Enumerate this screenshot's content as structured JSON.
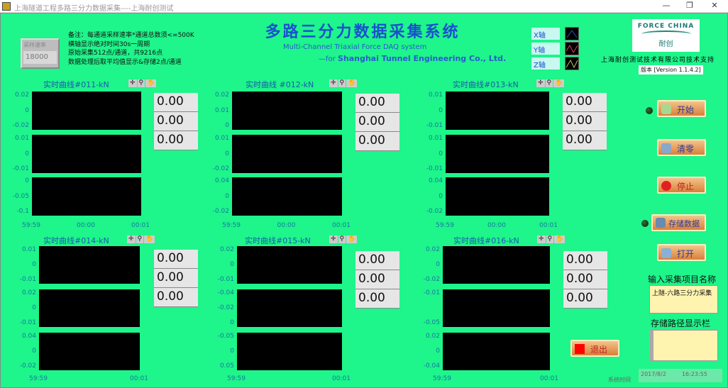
{
  "window": {
    "title": "上海隧道工程多路三分力数据采集----上海耐创测试",
    "minimize": "—",
    "restore": "❐",
    "close": "✕"
  },
  "sample_rate": {
    "label": "采样速率",
    "value": "18000"
  },
  "notes": [
    "备注：每通道采样速率*通道总数须<=500K",
    "横轴显示绝对时间30s一周期",
    "原始采集512点/通道，共9216点",
    "数据处理后取平均值显示&存储2点/通道"
  ],
  "header": {
    "title": "多路三分力数据采集系统",
    "subtitle": "Multi-Channel Triaxial Force DAQ system",
    "subtitle2_prefix": "—for ",
    "subtitle2_company": "Shanghai Tunnel Engineering Co., Ltd."
  },
  "legend": [
    {
      "label": "X轴",
      "color": "#3050c0"
    },
    {
      "label": "Y轴",
      "color": "#e04060"
    },
    {
      "label": "Z轴",
      "color": "#c0c060"
    }
  ],
  "logo": {
    "text": "FORCE CHINA",
    "cn": "耐创"
  },
  "company": "上海耐创测试技术有限公司技术支持",
  "version": "版本 [Version 1.1.4.2]",
  "tools": [
    "✛",
    "⚲",
    "✋"
  ],
  "charts": [
    {
      "title": "实时曲线#011-kN",
      "strips": [
        [
          "0.02",
          "0",
          "-0.02"
        ],
        [
          "0.01",
          "0",
          "-0.01"
        ],
        [
          "0",
          "-0.05",
          "-0.1"
        ]
      ],
      "xticks": [
        "59:59",
        "00:00",
        "00:01"
      ],
      "values": [
        "0.00",
        "0.00",
        "0.00"
      ]
    },
    {
      "title": "实时曲线 #012-kN",
      "strips": [
        [
          "0.02",
          "0.01",
          "0"
        ],
        [
          "0.01",
          "0",
          "-0.02"
        ],
        [
          "0.04",
          "0",
          "-0.02"
        ]
      ],
      "xticks": [
        "59:59",
        "00:00",
        "00:01"
      ],
      "values": [
        "0.00",
        "0.00",
        "0.00"
      ]
    },
    {
      "title": "实时曲线#013-kN",
      "strips": [
        [
          "0.01",
          "0",
          "-0.01"
        ],
        [
          "0.01",
          "0",
          "-0.01"
        ],
        [
          "0.04",
          "0",
          "-0.02"
        ]
      ],
      "xticks": [
        "59:59",
        "00:00",
        "00:01"
      ],
      "values": [
        "0.00",
        "0.00",
        "0.00"
      ]
    },
    {
      "title": "实时曲线#014-kN",
      "strips": [
        [
          "0.01",
          "0",
          "-0.01"
        ],
        [
          "0.02",
          "0",
          "-0.01"
        ],
        [
          "0.04",
          "0",
          "-0.02"
        ]
      ],
      "xticks": [
        "59:59",
        "00:01"
      ],
      "values": [
        "0.00",
        "0.00",
        "0.00"
      ]
    },
    {
      "title": "实时曲线#015-kN",
      "strips": [
        [
          "0.02",
          "0",
          "-0.01"
        ],
        [
          "-0.04",
          "-0.02",
          "0"
        ],
        [
          "-0.05",
          "0",
          "0.05"
        ]
      ],
      "xticks": [
        "59:59",
        "00:01"
      ],
      "values": [
        "0.00",
        "0.00",
        "0.00"
      ]
    },
    {
      "title": "实时曲线#016-kN",
      "strips": [
        [
          "0.02",
          "0",
          "-0.02"
        ],
        [
          "-0.01",
          "",
          "-0.05"
        ],
        [
          "0.02",
          "0",
          "-0.04"
        ]
      ],
      "xticks": [
        "59:59",
        "00:01"
      ],
      "values": [
        "0.00",
        "0.00",
        "0.00"
      ]
    }
  ],
  "buttons": {
    "start": "开始",
    "clear": "清零",
    "stop": "停止",
    "save": "存储数据",
    "open": "打开",
    "exit": "退出"
  },
  "project": {
    "label": "输入采集项目名称",
    "value": "上隧-六路三分力采集"
  },
  "path": {
    "label": "存储路径显示栏",
    "value": ""
  },
  "system_time": {
    "label": "系统时间",
    "date": "2017/8/2",
    "time": "16:23:55"
  }
}
